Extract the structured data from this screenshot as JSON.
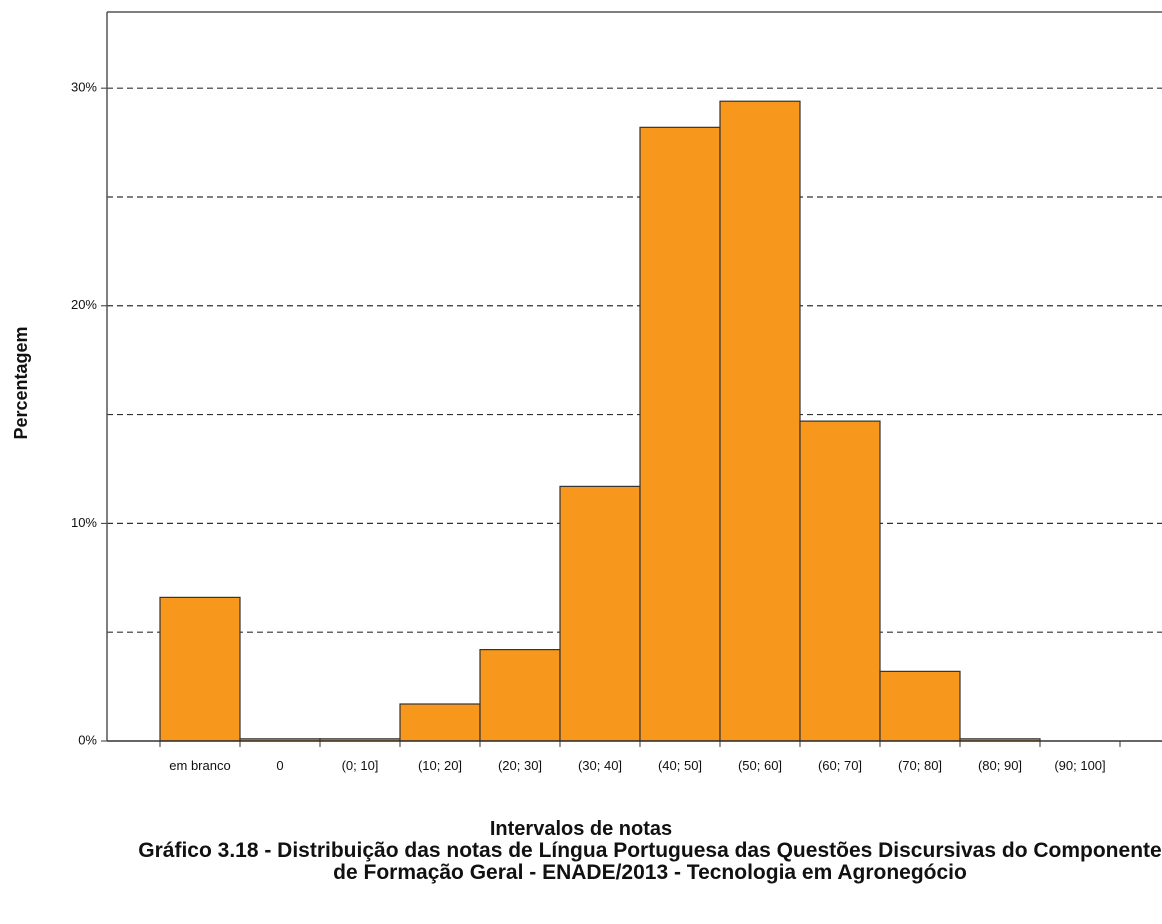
{
  "chart_data": {
    "type": "bar",
    "title": "Gráfico 3.18 - Distribuição das notas de Língua Portuguesa das Questões Discursivas do Componente de Formação Geral - ENADE/2013 - Tecnologia em Agronegócio",
    "x_label": "Intervalos de notas",
    "y_label": "Percentagem",
    "categories": [
      "em branco",
      "0",
      "(0; 10]",
      "(10; 20]",
      "(20; 30]",
      "(30; 40]",
      "(40; 50]",
      "(50; 60]",
      "(60; 70]",
      "(70; 80]",
      "(80; 90]",
      "(90; 100]"
    ],
    "values": [
      6.6,
      0.1,
      0.1,
      1.7,
      4.2,
      11.7,
      28.2,
      29.4,
      14.7,
      3.2,
      0.1,
      0
    ],
    "color": "#f7981d",
    "ylim": [
      0,
      33.5
    ],
    "yticks": [
      {
        "value": 0,
        "label": "0%"
      },
      {
        "value": 10,
        "label": "10%"
      },
      {
        "value": 20,
        "label": "20%"
      },
      {
        "value": 30,
        "label": "30%"
      }
    ],
    "yticks_minor": [
      5,
      15,
      25
    ],
    "grid": true
  }
}
